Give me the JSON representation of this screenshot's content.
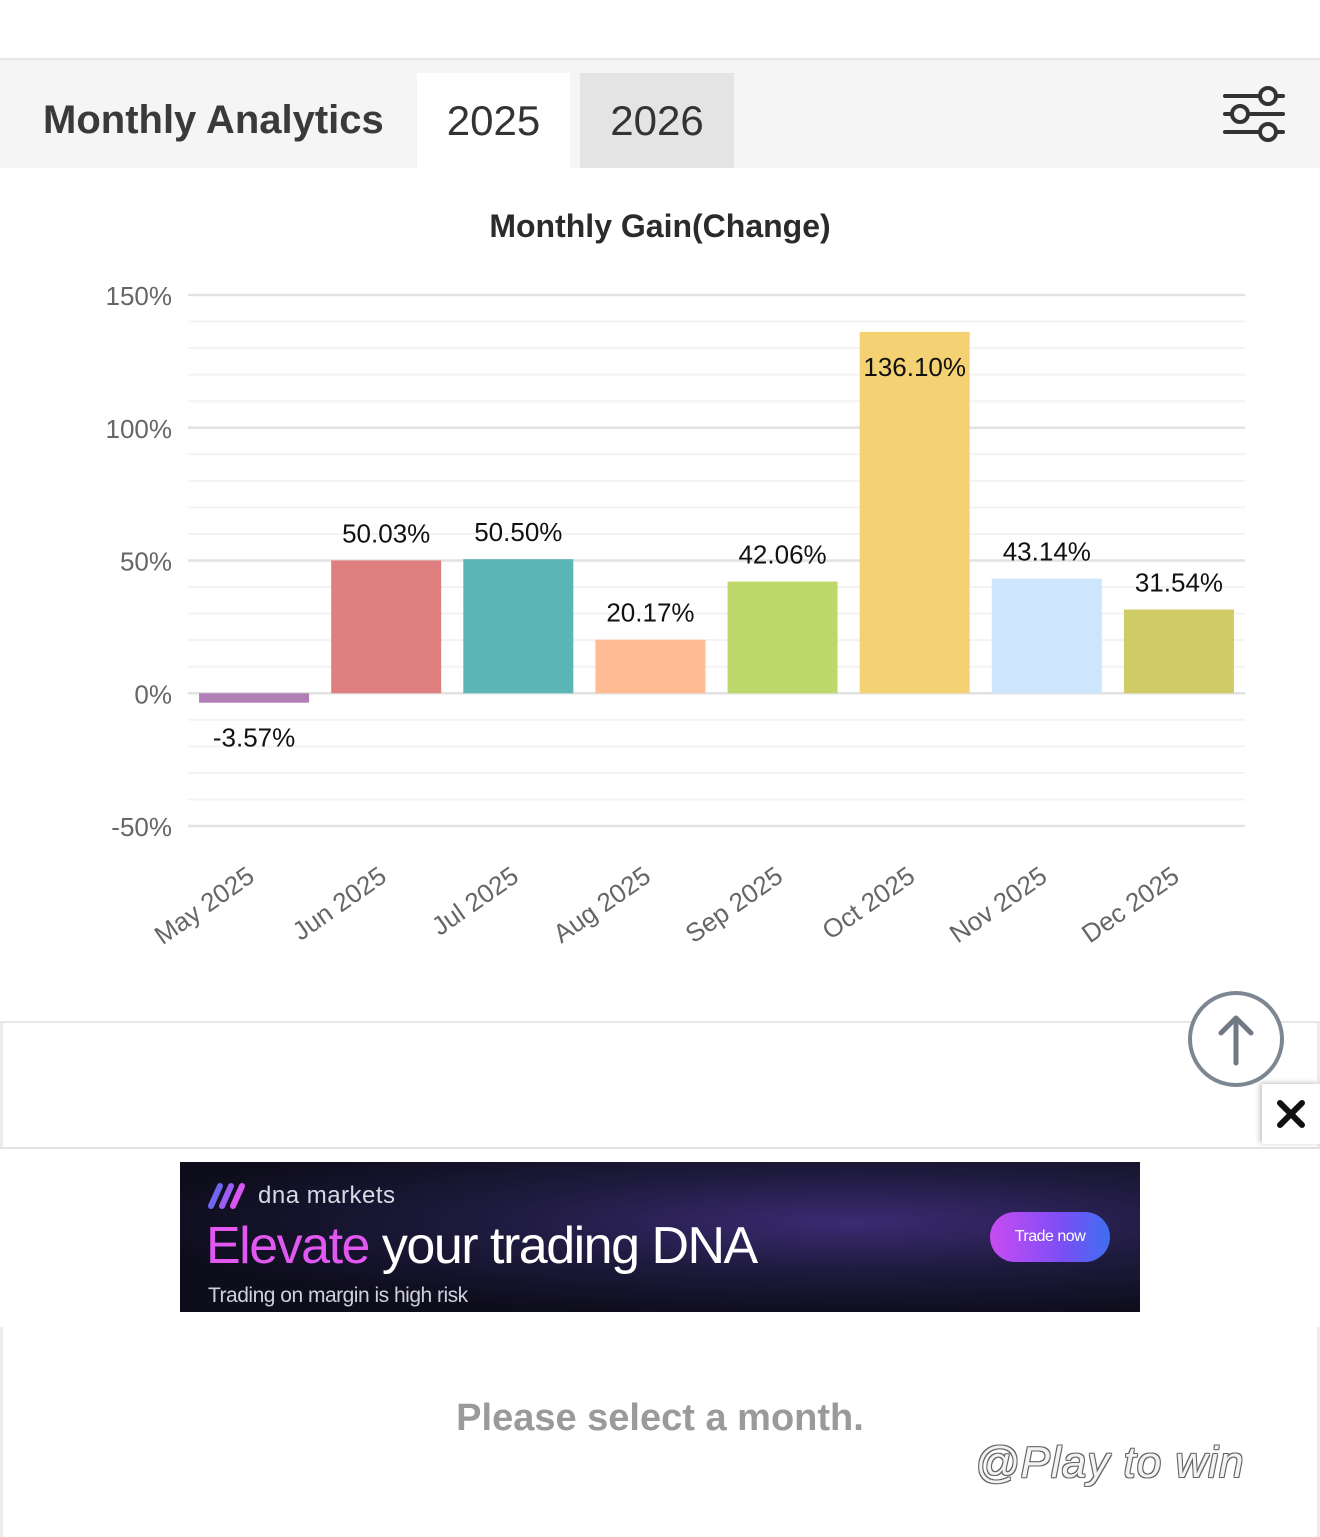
{
  "header": {
    "title": "Monthly Analytics",
    "tabs": [
      {
        "label": "2025",
        "selected": true
      },
      {
        "label": "2026",
        "selected": false
      }
    ],
    "filter_icon": "sliders-icon"
  },
  "chart_data": {
    "type": "bar",
    "title": "Monthly Gain(Change)",
    "xlabel": "",
    "ylabel": "",
    "categories": [
      "May 2025",
      "Jun 2025",
      "Jul 2025",
      "Aug 2025",
      "Sep 2025",
      "Oct 2025",
      "Nov 2025",
      "Dec 2025"
    ],
    "values": [
      -3.57,
      50.03,
      50.5,
      20.17,
      42.06,
      136.1,
      43.14,
      31.54
    ],
    "data_labels": [
      "-3.57%",
      "50.03%",
      "50.50%",
      "20.17%",
      "42.06%",
      "136.10%",
      "43.14%",
      "31.54%"
    ],
    "colors": [
      "#b07fb5",
      "#e07f80",
      "#5bb5b4",
      "#ffbb93",
      "#bcd86b",
      "#f4d172",
      "#cde6fb",
      "#cfcc67"
    ],
    "ylim": [
      -50,
      150
    ],
    "yticks": [
      150,
      100,
      50,
      0,
      -50
    ],
    "ytick_labels": [
      "150%",
      "100%",
      "50%",
      "0%",
      "-50%"
    ],
    "grid": true,
    "legend": "none"
  },
  "scroll_top_icon": "arrow-up-icon",
  "close_icon": "close-icon",
  "ad": {
    "brand": "dna markets",
    "headline_highlight": "Elevate",
    "headline_rest": " your trading DNA",
    "disclaimer": "Trading on margin is high risk",
    "cta": "Trade now"
  },
  "month_panel": {
    "prompt": "Please select a month."
  },
  "watermark": "@Play to win"
}
